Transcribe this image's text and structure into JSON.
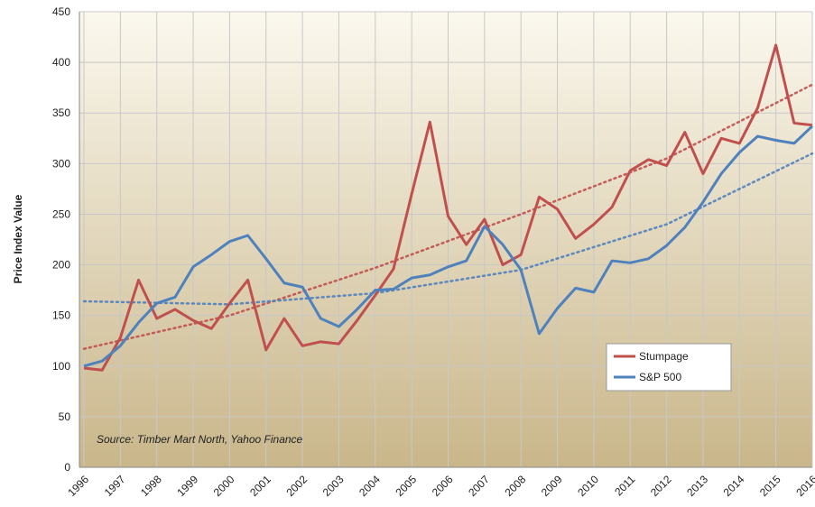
{
  "chart_data": {
    "type": "line",
    "y_label": "Price Index Value",
    "annotation": "Source: Timber Mart North, Yahoo Finance",
    "x": [
      1996,
      1996.5,
      1997,
      1997.5,
      1998,
      1998.5,
      1999,
      1999.5,
      2000,
      2000.5,
      2001,
      2001.5,
      2002,
      2002.5,
      2003,
      2003.5,
      2004,
      2004.5,
      2005,
      2005.5,
      2006,
      2006.5,
      2007,
      2007.5,
      2008,
      2008.5,
      2009,
      2009.5,
      2010,
      2010.5,
      2011,
      2011.5,
      2012,
      2012.5,
      2013,
      2013.5,
      2014,
      2014.5,
      2015,
      2015.5,
      2016
    ],
    "series": [
      {
        "name": "Stumpage",
        "color": "#c0504d",
        "values": [
          98,
          96,
          128,
          185,
          147,
          156,
          145,
          137,
          162,
          185,
          116,
          147,
          120,
          124,
          122,
          145,
          170,
          196,
          270,
          341,
          248,
          220,
          245,
          200,
          210,
          267,
          255,
          226,
          240,
          257,
          293,
          304,
          298,
          331,
          290,
          325,
          320,
          355,
          417,
          340,
          338
        ],
        "trend": {
          "x": [
            1996,
            2000,
            2004,
            2008,
            2012,
            2016
          ],
          "values": [
            117,
            150,
            197,
            250,
            305,
            378
          ]
        }
      },
      {
        "name": "S&P 500",
        "color": "#4f81bd",
        "values": [
          100,
          105,
          120,
          143,
          162,
          168,
          198,
          210,
          223,
          229,
          206,
          182,
          178,
          147,
          139,
          156,
          175,
          176,
          187,
          190,
          198,
          204,
          238,
          220,
          195,
          132,
          157,
          177,
          173,
          204,
          202,
          206,
          219,
          237,
          262,
          290,
          311,
          327,
          323,
          320,
          337
        ],
        "trend": {
          "x": [
            1996,
            2000,
            2004,
            2008,
            2012,
            2016
          ],
          "values": [
            164,
            161,
            172,
            195,
            240,
            310
          ]
        }
      }
    ],
    "xlim": [
      1996,
      2016
    ],
    "xticks": [
      1996,
      1997,
      1998,
      1999,
      2000,
      2001,
      2002,
      2003,
      2004,
      2005,
      2006,
      2007,
      2008,
      2009,
      2010,
      2011,
      2012,
      2013,
      2014,
      2015,
      2016
    ],
    "ylim": [
      0,
      450
    ],
    "yticks": [
      0,
      50,
      100,
      150,
      200,
      250,
      300,
      350,
      400,
      450
    ],
    "grid": true,
    "legend": "lower-right"
  }
}
